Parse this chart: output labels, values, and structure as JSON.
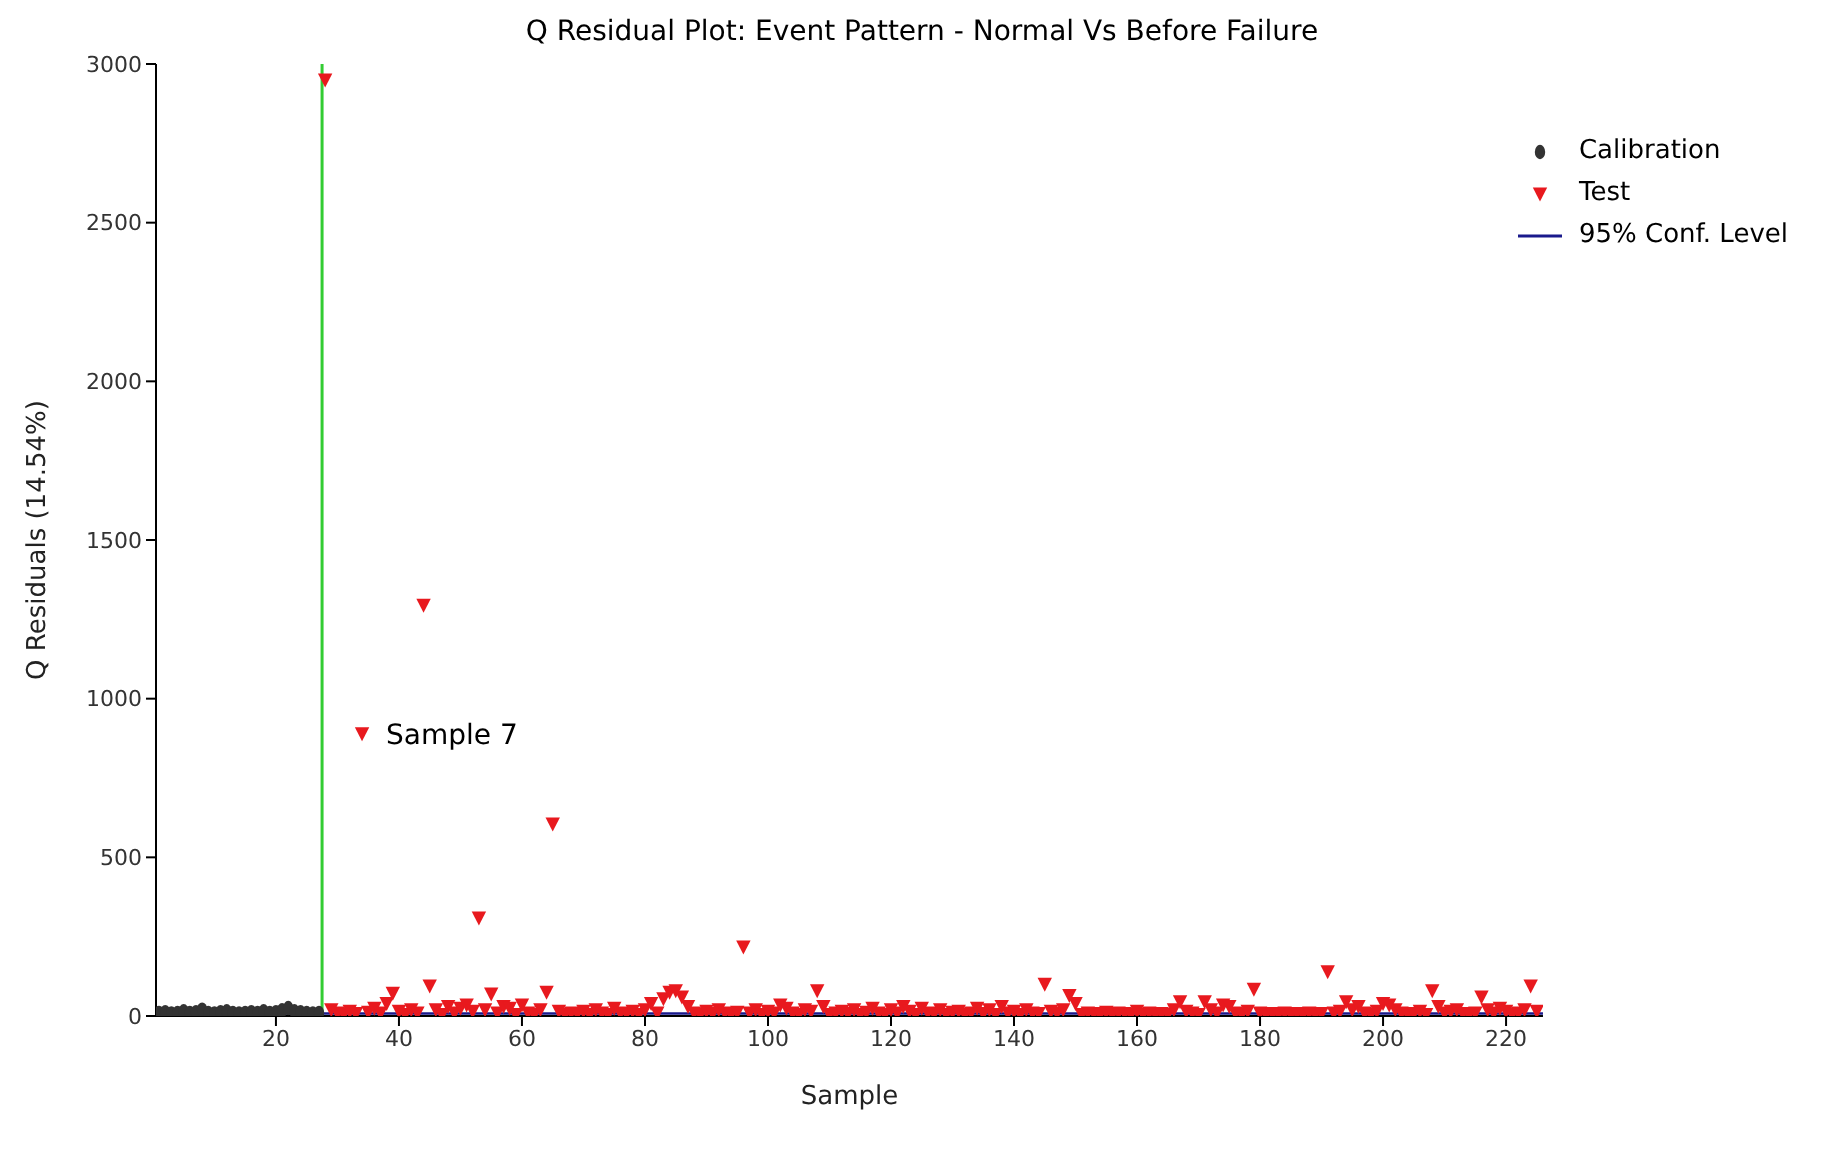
{
  "chart_data": {
    "type": "scatter",
    "title": "Q Residual Plot: Event Pattern - Normal Vs Before Failure",
    "xlabel": "Sample",
    "ylabel": "Q Residuals (14.54%)",
    "xlim": [
      0.5,
      226
    ],
    "xticks": [
      20,
      40,
      60,
      80,
      100,
      120,
      140,
      160,
      180,
      200,
      220
    ],
    "ylim": [
      0,
      3000
    ],
    "yticks": [
      0,
      500,
      1000,
      1500,
      2000,
      2500,
      3000
    ],
    "grid": false,
    "legend": "top right",
    "series": [
      {
        "name": "Calibration",
        "color": "#333333",
        "marker": "circle",
        "x": [
          1,
          2,
          3,
          4,
          5,
          6,
          7,
          8,
          9,
          10,
          11,
          12,
          13,
          14,
          15,
          16,
          17,
          18,
          19,
          20,
          21,
          22,
          23,
          24,
          25,
          26,
          27
        ],
        "values": [
          10,
          12,
          8,
          10,
          15,
          10,
          12,
          20,
          10,
          8,
          12,
          15,
          10,
          8,
          10,
          12,
          10,
          15,
          10,
          12,
          18,
          25,
          15,
          12,
          10,
          8,
          10
        ]
      },
      {
        "name": "Test",
        "color": "#e8191e",
        "marker": "triangle",
        "x": [
          28,
          29,
          30,
          31,
          32,
          33,
          34,
          35,
          36,
          37,
          38,
          39,
          40,
          41,
          42,
          43,
          44,
          45,
          46,
          47,
          48,
          49,
          50,
          51,
          52,
          53,
          54,
          55,
          56,
          57,
          58,
          59,
          60,
          61,
          62,
          63,
          64,
          65,
          66,
          67,
          68,
          69,
          70,
          71,
          72,
          73,
          74,
          75,
          76,
          77,
          78,
          79,
          80,
          81,
          82,
          83,
          84,
          85,
          86,
          87,
          88,
          89,
          90,
          91,
          92,
          93,
          94,
          95,
          96,
          97,
          98,
          99,
          100,
          101,
          102,
          103,
          104,
          105,
          106,
          107,
          108,
          109,
          110,
          111,
          112,
          113,
          114,
          115,
          116,
          117,
          118,
          119,
          120,
          121,
          122,
          123,
          124,
          125,
          126,
          127,
          128,
          129,
          130,
          131,
          132,
          133,
          134,
          135,
          136,
          137,
          138,
          139,
          140,
          141,
          142,
          143,
          144,
          145,
          146,
          147,
          148,
          149,
          150,
          151,
          152,
          153,
          154,
          155,
          156,
          157,
          158,
          159,
          160,
          161,
          162,
          163,
          164,
          165,
          166,
          167,
          168,
          169,
          170,
          171,
          172,
          173,
          174,
          175,
          176,
          177,
          178,
          179,
          180,
          181,
          182,
          183,
          184,
          185,
          186,
          187,
          188,
          189,
          190,
          191,
          192,
          193,
          194,
          195,
          196,
          197,
          198,
          199,
          200,
          201,
          202,
          203,
          204,
          205,
          206,
          207,
          208,
          209,
          210,
          211,
          212,
          213,
          214,
          215,
          216,
          217,
          218,
          219,
          220,
          221,
          222,
          223,
          224,
          225
        ],
        "values": [
          2950,
          20,
          10,
          5,
          15,
          8,
          890,
          12,
          25,
          10,
          40,
          72,
          15,
          5,
          20,
          10,
          1295,
          95,
          20,
          5,
          30,
          10,
          25,
          35,
          15,
          309,
          20,
          70,
          10,
          30,
          25,
          5,
          35,
          10,
          5,
          20,
          75,
          605,
          15,
          5,
          10,
          8,
          15,
          5,
          20,
          10,
          5,
          25,
          10,
          8,
          15,
          5,
          20,
          40,
          10,
          55,
          75,
          80,
          60,
          30,
          10,
          5,
          15,
          8,
          20,
          10,
          5,
          12,
          218,
          10,
          20,
          5,
          15,
          10,
          35,
          25,
          10,
          5,
          20,
          15,
          80,
          30,
          5,
          10,
          15,
          8,
          20,
          5,
          12,
          25,
          10,
          5,
          20,
          10,
          30,
          15,
          5,
          25,
          10,
          8,
          20,
          5,
          12,
          15,
          5,
          10,
          25,
          8,
          20,
          5,
          30,
          10,
          15,
          5,
          20,
          10,
          8,
          100,
          15,
          10,
          20,
          65,
          40,
          5,
          10,
          8,
          5,
          12,
          5,
          10,
          8,
          5,
          15,
          5,
          10,
          5,
          8,
          5,
          20,
          45,
          15,
          10,
          5,
          45,
          20,
          10,
          35,
          30,
          10,
          5,
          15,
          85,
          10,
          5,
          8,
          5,
          10,
          5,
          8,
          5,
          10,
          5,
          8,
          140,
          10,
          15,
          45,
          20,
          30,
          10,
          5,
          15,
          40,
          35,
          20,
          10,
          5,
          8,
          15,
          5,
          80,
          30,
          10,
          15,
          20,
          8,
          5,
          10,
          60,
          20,
          10,
          25,
          15,
          5,
          10,
          20,
          95,
          15
        ]
      },
      {
        "name": "95% Conf. Level",
        "type": "line",
        "color": "#1a1a8c",
        "marker": "none",
        "line_style": "solid",
        "x": [
          0.5,
          226
        ],
        "values": [
          8,
          8
        ]
      }
    ],
    "ref_lines": [
      {
        "axis": "x",
        "value": 27.5,
        "color": "#33cc33"
      }
    ],
    "annotations": [
      {
        "text": "Sample 7",
        "x": 34,
        "y": 890
      }
    ]
  }
}
